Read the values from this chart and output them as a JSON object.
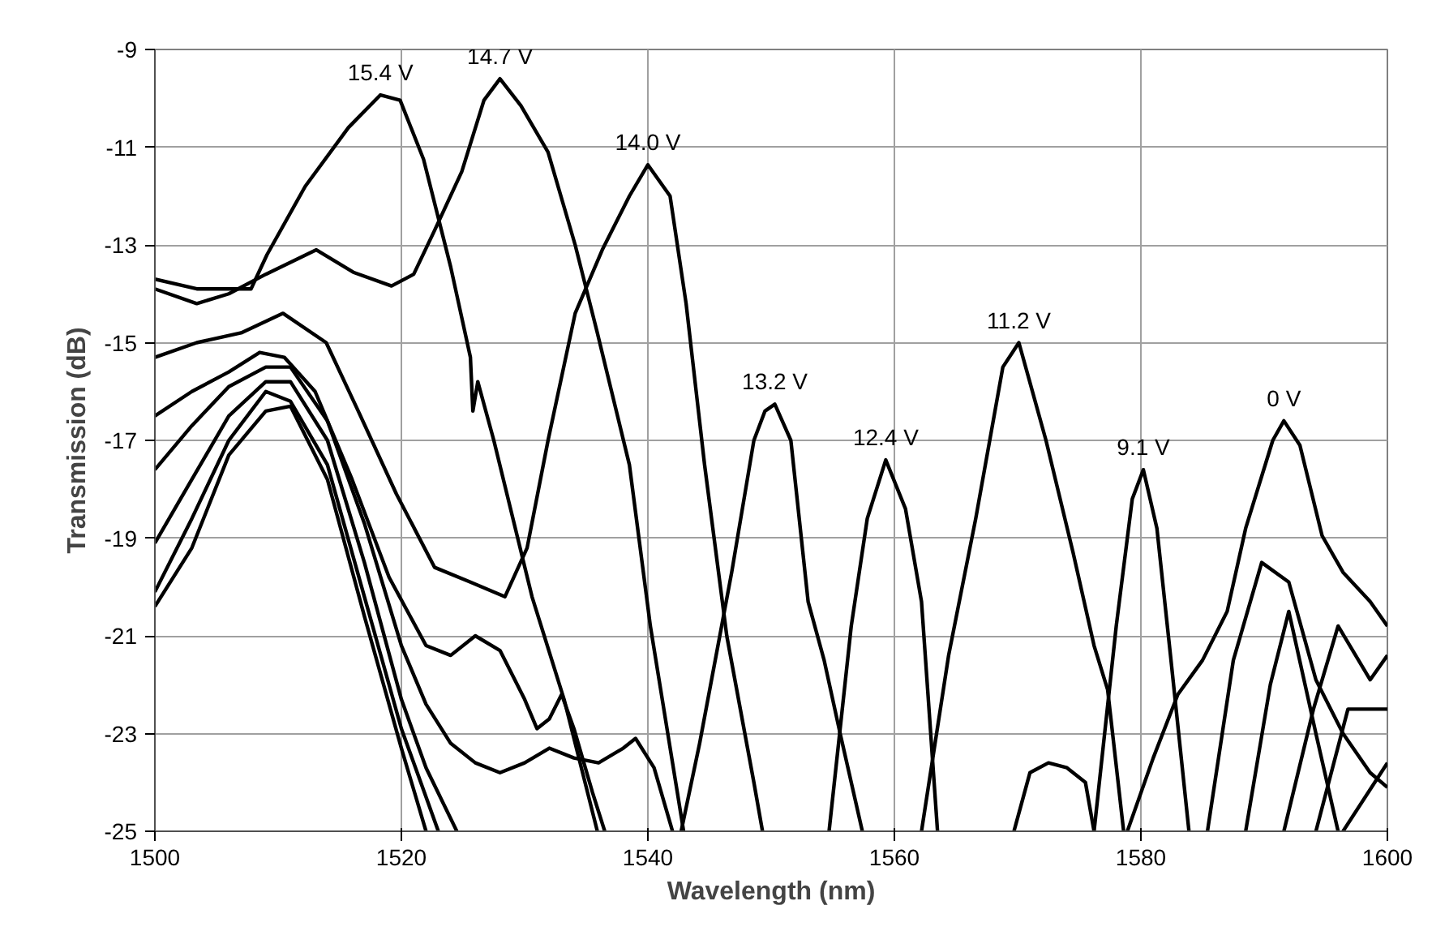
{
  "chart_data": {
    "type": "line",
    "xlabel": "Wavelength (nm)",
    "ylabel": "Transmission (dB)",
    "xlim": [
      1500,
      1600
    ],
    "ylim": [
      -25,
      -9
    ],
    "xticks": [
      1500,
      1520,
      1540,
      1560,
      1580,
      1600
    ],
    "yticks": [
      -25,
      -23,
      -21,
      -19,
      -17,
      -15,
      -13,
      -11,
      -9
    ],
    "grid": true,
    "marker": "none",
    "line_style": "solid",
    "series": [
      {
        "name": "15.4 V",
        "color": "#000000",
        "x": [
          1500,
          1503.4,
          1507.8,
          1509.1,
          1512.2,
          1515.7,
          1518.3,
          1519.9,
          1521.8,
          1524,
          1525.6,
          1525.8,
          1526.2,
          1527.5,
          1530.6,
          1533.2,
          1535.9,
          null,
          1591.6,
          1594,
          1596,
          1598.6,
          1600
        ],
        "values": [
          -13.7,
          -13.9,
          -13.9,
          -13.2,
          -11.8,
          -10.6,
          -9.93,
          -10.04,
          -11.25,
          -13.45,
          -15.3,
          -16.4,
          -15.8,
          -17.0,
          -20.2,
          -22.3,
          -25,
          null,
          -25,
          -22.5,
          -20.8,
          -21.9,
          -21.4
        ]
      },
      {
        "name": "14.7 V",
        "color": "#000000",
        "x": [
          1500,
          1503.4,
          1506,
          1509,
          1513.1,
          1516.1,
          1519.2,
          1521,
          1522.7,
          1524.9,
          1526.7,
          1528,
          1529.7,
          1531.9,
          1534.1,
          1535.9,
          1538.5,
          1540.2,
          1542,
          1542.9,
          null,
          1585.4,
          1587.5,
          1589.8,
          1592,
          1594.2,
          1596.4,
          1598.6,
          1600
        ],
        "values": [
          -13.9,
          -14.2,
          -14.0,
          -13.6,
          -13.1,
          -13.56,
          -13.84,
          -13.6,
          -12.7,
          -11.5,
          -10.04,
          -9.6,
          -10.15,
          -11.1,
          -13.0,
          -14.8,
          -17.5,
          -20.8,
          -23.6,
          -25,
          null,
          -25,
          -21.5,
          -19.5,
          -19.9,
          -21.9,
          -23.0,
          -23.8,
          -24.1
        ]
      },
      {
        "name": "14.0 V",
        "color": "#000000",
        "x": [
          1500,
          1503.4,
          1507,
          1510.4,
          1513.9,
          1516.5,
          1519.6,
          1522.7,
          1525.6,
          1528.4,
          1530.2,
          1531.9,
          1534.1,
          1536.3,
          1538.5,
          1540,
          1541.8,
          1543.1,
          1544.6,
          1546.4,
          1548.6,
          1549.3,
          null,
          1594.2,
          1596.8,
          1600
        ],
        "values": [
          -15.3,
          -15.0,
          -14.8,
          -14.4,
          -15.0,
          -16.4,
          -18.1,
          -19.6,
          -19.9,
          -20.2,
          -19.2,
          -17.0,
          -14.4,
          -13.1,
          -12.0,
          -11.36,
          -12.0,
          -14.2,
          -17.5,
          -21.0,
          -24.0,
          -25,
          null,
          -25,
          -22.5,
          -22.5
        ]
      },
      {
        "name": "13.2 V",
        "color": "#000000",
        "x": [
          1500,
          1503,
          1506,
          1508.5,
          1510.5,
          1513,
          1516,
          1519,
          1522,
          1524,
          1526,
          1528,
          1530,
          1531,
          1532,
          1533,
          1534,
          1535.5,
          1536.5,
          null,
          1542.7,
          1544.2,
          1546.8,
          1548.6,
          1549.5,
          1550.3,
          1551.6,
          1553,
          1554.3,
          1555.6,
          1557.4,
          null,
          1588.5,
          1590.5,
          1592,
          1594.2,
          1596
        ],
        "values": [
          -16.5,
          -16.0,
          -15.6,
          -15.2,
          -15.3,
          -16.0,
          -17.8,
          -19.8,
          -21.2,
          -21.4,
          -21.0,
          -21.3,
          -22.3,
          -22.9,
          -22.7,
          -22.2,
          -22.9,
          -24.2,
          -25,
          null,
          -25,
          -23.2,
          -19.7,
          -17.0,
          -16.4,
          -16.26,
          -17.0,
          -20.3,
          -21.5,
          -23.0,
          -25,
          null,
          -25,
          -22.0,
          -20.5,
          -23.0,
          -25
        ]
      },
      {
        "name": "12.4 V",
        "color": "#000000",
        "x": [
          1500,
          1503,
          1506,
          1509,
          1511,
          1514,
          1517,
          1520,
          1522,
          1524,
          1526,
          1528,
          1530,
          1532,
          1534,
          1536,
          1538,
          1539,
          1540.5,
          1542,
          null,
          1554.7,
          1556.5,
          1557.8,
          1559.3,
          1560.9,
          1562.2,
          1563.5,
          null,
          1569.7,
          1571,
          1572.5,
          1574,
          1575.5,
          1576.2,
          null,
          1596.4,
          1600
        ],
        "values": [
          -17.6,
          -16.7,
          -15.9,
          -15.5,
          -15.5,
          -16.6,
          -18.7,
          -21.2,
          -22.4,
          -23.2,
          -23.6,
          -23.8,
          -23.6,
          -23.3,
          -23.5,
          -23.6,
          -23.3,
          -23.1,
          -23.7,
          -25,
          null,
          -25,
          -20.8,
          -18.6,
          -17.4,
          -18.4,
          -20.3,
          -25,
          null,
          -25,
          -23.8,
          -23.6,
          -23.7,
          -24.0,
          -25,
          null,
          -25,
          -23.6
        ]
      },
      {
        "name": "11.2 V",
        "color": "#000000",
        "x": [
          1500,
          1503,
          1506,
          1509,
          1511,
          1514,
          1517,
          1520,
          1522,
          1524.5,
          null,
          1562.2,
          1564.4,
          1566.6,
          1568.8,
          1570.1,
          1572.3,
          1574.5,
          1576.2,
          1577.3,
          1578.6
        ],
        "values": [
          -19.1,
          -17.8,
          -16.5,
          -15.8,
          -15.8,
          -17.0,
          -19.5,
          -22.3,
          -23.7,
          -25,
          null,
          -25,
          -21.4,
          -18.6,
          -15.5,
          -15.0,
          -17.0,
          -19.3,
          -21.2,
          -22.1,
          -25
        ]
      },
      {
        "name": "9.1 V",
        "color": "#000000",
        "x": [
          1500,
          1503,
          1506,
          1509,
          1511,
          1514,
          1517,
          1520,
          1522,
          1523,
          null,
          1576.2,
          1578,
          1579.3,
          1580.2,
          1581.3,
          1582.4,
          1583.9
        ],
        "values": [
          -20.1,
          -18.6,
          -17.0,
          -16.0,
          -16.2,
          -17.5,
          -20.2,
          -22.9,
          -24.3,
          -25,
          null,
          -25,
          -20.8,
          -18.2,
          -17.6,
          -18.8,
          -21.4,
          -25
        ]
      },
      {
        "name": "0 V",
        "color": "#000000",
        "x": [
          1500,
          1503,
          1506,
          1509,
          1511,
          1514,
          1517,
          1520,
          1522,
          null,
          1578.9,
          1581,
          1583,
          1585,
          1587,
          1588.5,
          1590.7,
          1591.6,
          1592.9,
          1594.7,
          1596.4,
          1598.6,
          1600
        ],
        "values": [
          -20.4,
          -19.2,
          -17.3,
          -16.4,
          -16.3,
          -17.8,
          -20.6,
          -23.3,
          -25,
          null,
          -25,
          -23.5,
          -22.2,
          -21.5,
          -20.5,
          -18.8,
          -17.0,
          -16.6,
          -17.1,
          -18.95,
          -19.7,
          -20.3,
          -20.8
        ]
      }
    ]
  }
}
